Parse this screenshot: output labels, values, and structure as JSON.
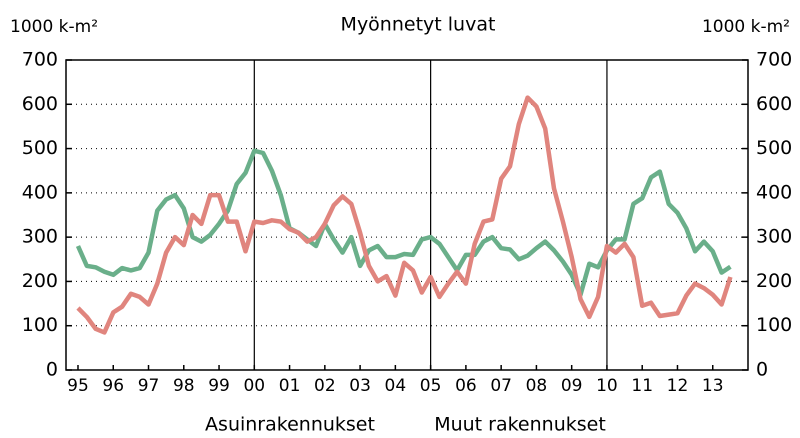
{
  "chart_data": {
    "type": "line",
    "title": "Myönnetyt luvat",
    "y_label": "1000 k-m²",
    "y2_label": "1000 k-m²",
    "xlim": [
      1994.66,
      2014
    ],
    "xticks": [
      {
        "value": 1995,
        "label": "95"
      },
      {
        "value": 1996,
        "label": "96"
      },
      {
        "value": 1997,
        "label": "97"
      },
      {
        "value": 1998,
        "label": "98"
      },
      {
        "value": 1999,
        "label": "99"
      },
      {
        "value": 2000,
        "label": "00"
      },
      {
        "value": 2001,
        "label": "01"
      },
      {
        "value": 2002,
        "label": "02"
      },
      {
        "value": 2003,
        "label": "03"
      },
      {
        "value": 2004,
        "label": "04"
      },
      {
        "value": 2005,
        "label": "05"
      },
      {
        "value": 2006,
        "label": "06"
      },
      {
        "value": 2007,
        "label": "07"
      },
      {
        "value": 2008,
        "label": "08"
      },
      {
        "value": 2009,
        "label": "09"
      },
      {
        "value": 2010,
        "label": "10"
      },
      {
        "value": 2011,
        "label": "11"
      },
      {
        "value": 2012,
        "label": "12"
      },
      {
        "value": 2013,
        "label": "13"
      }
    ],
    "vlines": [
      2000,
      2005,
      2010
    ],
    "ylim": [
      0,
      700
    ],
    "yticks": [
      0,
      100,
      200,
      300,
      400,
      500,
      600,
      700
    ],
    "y2lim": [
      0,
      700
    ],
    "y2ticks": [
      0,
      100,
      200,
      300,
      400,
      500,
      600,
      700
    ],
    "grid": true,
    "x": [
      1995,
      1995.25,
      1995.5,
      1995.75,
      1996,
      1996.25,
      1996.5,
      1996.75,
      1997,
      1997.25,
      1997.5,
      1997.75,
      1998,
      1998.25,
      1998.5,
      1998.75,
      1999,
      1999.25,
      1999.5,
      1999.75,
      2000,
      2000.25,
      2000.5,
      2000.75,
      2001,
      2001.25,
      2001.5,
      2001.75,
      2002,
      2002.25,
      2002.5,
      2002.75,
      2003,
      2003.25,
      2003.5,
      2003.75,
      2004,
      2004.25,
      2004.5,
      2004.75,
      2005,
      2005.25,
      2005.5,
      2005.75,
      2006,
      2006.25,
      2006.5,
      2006.75,
      2007,
      2007.25,
      2007.5,
      2007.75,
      2008,
      2008.25,
      2008.5,
      2008.75,
      2009,
      2009.25,
      2009.5,
      2009.75,
      2010,
      2010.25,
      2010.5,
      2010.75,
      2011,
      2011.25,
      2011.5,
      2011.75,
      2012,
      2012.25,
      2012.5,
      2012.75,
      2013,
      2013.25,
      2013.5
    ],
    "series": [
      {
        "name": "Asuinrakennukset",
        "color": "#6aaf8a",
        "values": [
          280,
          235,
          232,
          222,
          215,
          230,
          225,
          230,
          265,
          360,
          385,
          395,
          365,
          300,
          290,
          305,
          330,
          360,
          420,
          445,
          495,
          490,
          450,
          395,
          320,
          310,
          295,
          280,
          330,
          295,
          265,
          300,
          235,
          270,
          280,
          255,
          255,
          262,
          260,
          295,
          300,
          285,
          255,
          225,
          260,
          260,
          290,
          300,
          275,
          272,
          250,
          258,
          275,
          290,
          270,
          245,
          215,
          170,
          240,
          232,
          270,
          295,
          295,
          375,
          388,
          435,
          448,
          375,
          355,
          320,
          268,
          290,
          268,
          220,
          233
        ]
      },
      {
        "name": "Muut rakennukset",
        "color": "#e0857e",
        "values": [
          140,
          120,
          93,
          85,
          130,
          143,
          172,
          165,
          148,
          195,
          265,
          300,
          282,
          350,
          330,
          395,
          395,
          335,
          335,
          268,
          335,
          332,
          338,
          335,
          318,
          310,
          290,
          300,
          330,
          372,
          392,
          375,
          310,
          235,
          200,
          212,
          168,
          242,
          225,
          175,
          210,
          165,
          195,
          222,
          195,
          285,
          335,
          340,
          432,
          460,
          555,
          615,
          595,
          545,
          410,
          335,
          255,
          160,
          120,
          165,
          280,
          265,
          285,
          255,
          145,
          152,
          122,
          125,
          128,
          168,
          195,
          185,
          170,
          148,
          210
        ]
      }
    ]
  }
}
